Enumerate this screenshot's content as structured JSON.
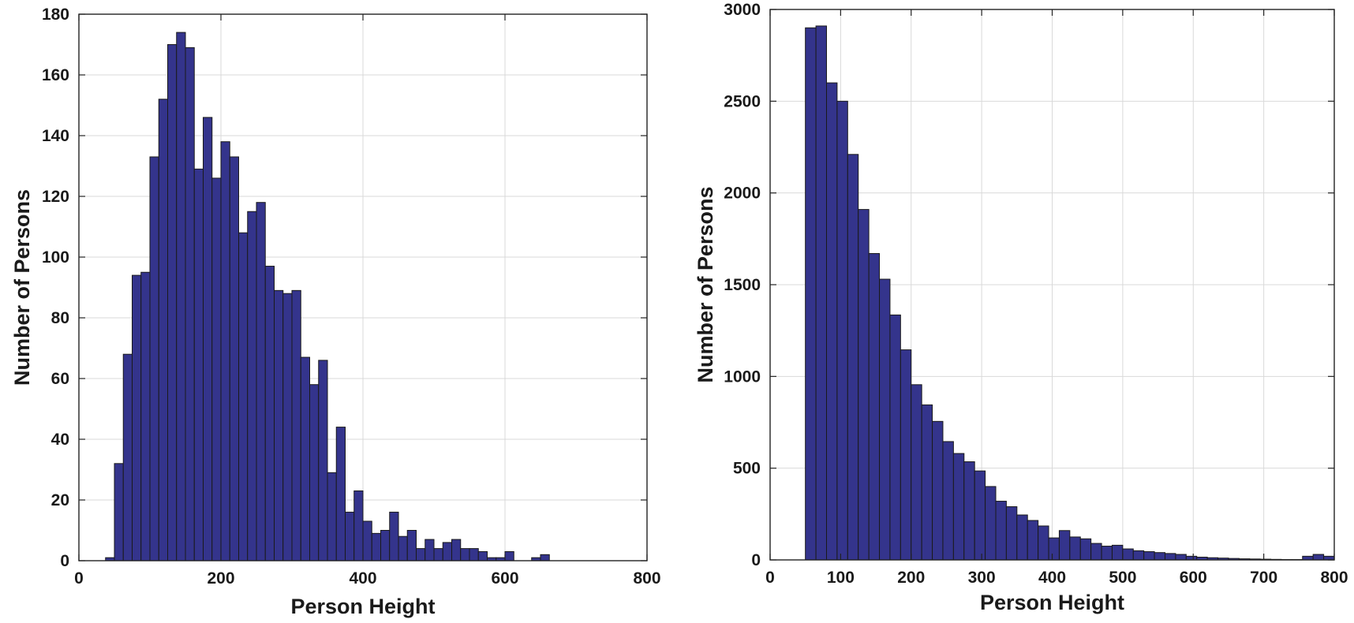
{
  "colors": {
    "bar_fill": "#34348c",
    "bar_edge": "#1a1a1a",
    "grid": "#d9d9d9",
    "axis": "#222222"
  },
  "chart_data": [
    {
      "type": "bar",
      "xlabel": "Person Height",
      "ylabel": "Number of Persons",
      "xlim": [
        0,
        800
      ],
      "ylim": [
        0,
        180
      ],
      "xticks": [
        0,
        200,
        400,
        600,
        800
      ],
      "yticks": [
        0,
        20,
        40,
        60,
        80,
        100,
        120,
        140,
        160,
        180
      ],
      "grid": true,
      "bin_width": 12.5,
      "bin_start": 25,
      "values": [
        0,
        1,
        32,
        68,
        94,
        95,
        133,
        152,
        170,
        174,
        169,
        129,
        146,
        126,
        138,
        133,
        108,
        115,
        118,
        97,
        89,
        88,
        89,
        67,
        58,
        66,
        29,
        44,
        16,
        23,
        13,
        9,
        10,
        16,
        8,
        10,
        4,
        7,
        4,
        6,
        7,
        4,
        4,
        3,
        1,
        1,
        3,
        0,
        0,
        1,
        2
      ]
    },
    {
      "type": "bar",
      "xlabel": "Person Height",
      "ylabel": "Number of Persons",
      "xlim": [
        0,
        800
      ],
      "ylim": [
        0,
        3000
      ],
      "xticks": [
        0,
        100,
        200,
        300,
        400,
        500,
        600,
        700,
        800
      ],
      "yticks": [
        0,
        500,
        1000,
        1500,
        2000,
        2500,
        3000
      ],
      "grid": true,
      "bin_width": 15,
      "bin_start": 50,
      "values": [
        2900,
        2910,
        2600,
        2500,
        2210,
        1910,
        1670,
        1530,
        1335,
        1145,
        955,
        845,
        755,
        645,
        580,
        535,
        485,
        400,
        320,
        290,
        245,
        215,
        185,
        120,
        160,
        125,
        115,
        90,
        75,
        80,
        60,
        50,
        45,
        40,
        35,
        30,
        20,
        15,
        12,
        10,
        8,
        6,
        5,
        4,
        3,
        2,
        2,
        20,
        30,
        20
      ]
    }
  ]
}
